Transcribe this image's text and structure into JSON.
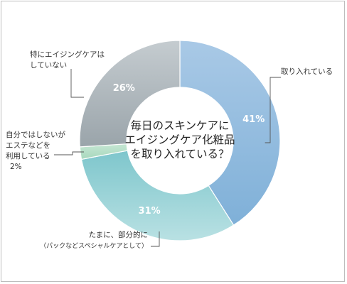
{
  "chart_data": {
    "type": "pie",
    "variant": "donut",
    "center_title": [
      "毎日のスキンケアに",
      "エイジングケア化粧品",
      "を取り入れている？"
    ],
    "slices": [
      {
        "label": [
          "取り入れている"
        ],
        "value": 41,
        "value_label": "41%",
        "color_top": "#a9c9e6",
        "color_bottom": "#7fb0d8"
      },
      {
        "label": [
          "たまに、部分的に",
          "（パックなどスペシャルケアとして）"
        ],
        "value": 31,
        "value_label": "31%",
        "color_top": "#7ec6cc",
        "color_bottom": "#b9e1e3"
      },
      {
        "label": [
          "自分ではしないが",
          "エステなどを",
          "利用している",
          "2%"
        ],
        "value": 2,
        "value_label": "",
        "color_top": "#c5e6d3",
        "color_bottom": "#a8d8bd"
      },
      {
        "label": [
          "特にエイジングケアは",
          "していない"
        ],
        "value": 26,
        "value_label": "26%",
        "color_top": "#c5ccd0",
        "color_bottom": "#9aa4aa"
      }
    ],
    "start_angle_deg": 0,
    "direction": "clockwise"
  }
}
